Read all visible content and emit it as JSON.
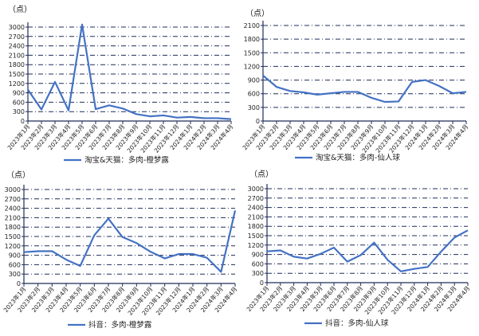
{
  "colors": {
    "line": "#4472C4",
    "grid": "#1F2D5A",
    "axis": "#1F2D5A"
  },
  "categories": [
    "2023年1月",
    "2023年2月",
    "2023年3月",
    "2023年4月",
    "2023年5月",
    "2023年6月",
    "2023年7月",
    "2023年8月",
    "2023年9月",
    "2023年10月",
    "2023年11月",
    "2023年12月",
    "2024年1月",
    "2024年2月",
    "2024年3月",
    "2024年4月"
  ],
  "chart_data": [
    {
      "type": "line",
      "unit": "（点）",
      "ylim": [
        0,
        3000
      ],
      "yticks": [
        0,
        300,
        600,
        900,
        1200,
        1500,
        1800,
        2100,
        2400,
        2700,
        3000
      ],
      "grid": true,
      "legend": "bottom",
      "series": [
        {
          "name": "淘宝&天猫：多肉-橙梦露",
          "values": [
            1000,
            370,
            1250,
            340,
            3080,
            380,
            500,
            400,
            220,
            150,
            180,
            110,
            130,
            90,
            90,
            60
          ]
        }
      ]
    },
    {
      "type": "line",
      "unit": "（点）",
      "ylim": [
        0,
        2100
      ],
      "yticks": [
        0,
        300,
        600,
        900,
        1200,
        1500,
        1800,
        2100
      ],
      "grid": true,
      "legend": "bottom",
      "series": [
        {
          "name": "淘宝&天猫：多肉-仙人球",
          "values": [
            1000,
            750,
            660,
            630,
            580,
            610,
            640,
            640,
            510,
            420,
            430,
            860,
            900,
            770,
            610,
            640
          ]
        }
      ]
    },
    {
      "type": "line",
      "unit": "（点）",
      "ylim": [
        0,
        3000
      ],
      "yticks": [
        0,
        300,
        600,
        900,
        1200,
        1500,
        1800,
        2100,
        2400,
        2700,
        3000
      ],
      "grid": true,
      "legend": "bottom",
      "series": [
        {
          "name": "抖音：多肉-橙梦露",
          "values": [
            1000,
            1030,
            1030,
            760,
            560,
            1540,
            2070,
            1480,
            1290,
            1010,
            800,
            940,
            940,
            820,
            370,
            2330
          ]
        }
      ]
    },
    {
      "type": "line",
      "unit": "（点）",
      "ylim": [
        0,
        3000
      ],
      "yticks": [
        0,
        300,
        600,
        900,
        1200,
        1500,
        1800,
        2100,
        2400,
        2700,
        3000
      ],
      "grid": true,
      "legend": "bottom",
      "series": [
        {
          "name": "抖音：多肉-仙人球",
          "values": [
            1000,
            1030,
            830,
            770,
            920,
            1120,
            670,
            880,
            1280,
            730,
            360,
            440,
            500,
            990,
            1440,
            1670
          ]
        }
      ]
    }
  ]
}
